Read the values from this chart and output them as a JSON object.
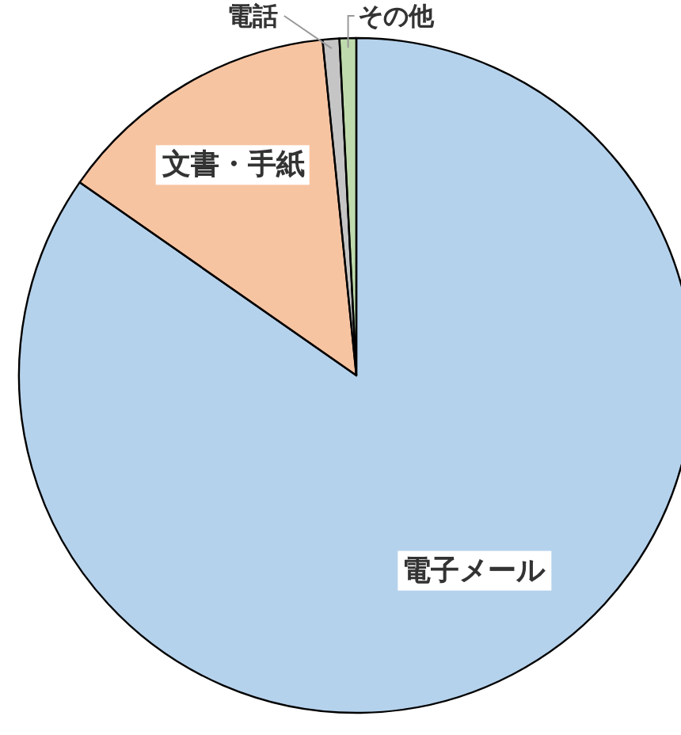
{
  "chart_data": {
    "type": "pie",
    "categories": [
      "電子メール",
      "文書・手紙",
      "電話",
      "その他"
    ],
    "values": [
      84.7,
      13.7,
      0.8,
      0.8
    ],
    "colors": [
      "#5b9bd5",
      "#ed7d31",
      "#7f7f7f",
      "#70ad47"
    ],
    "legend": false
  }
}
